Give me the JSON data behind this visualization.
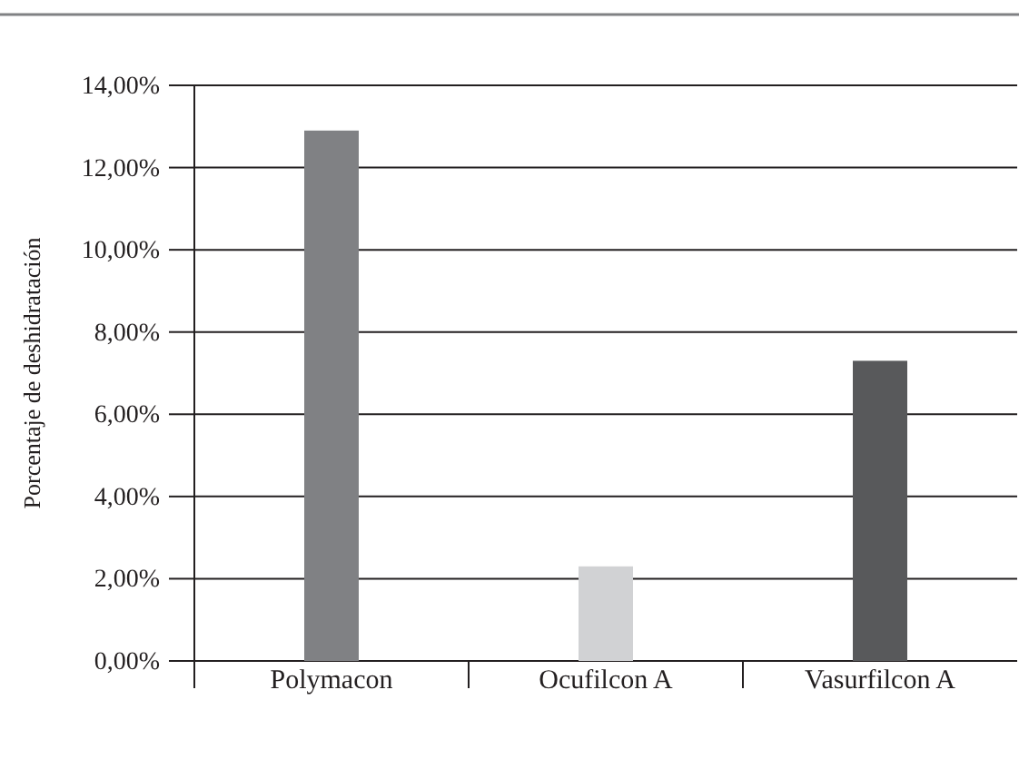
{
  "chart_data": {
    "type": "bar",
    "ylabel": "Porcentaje de deshidratación",
    "categories": [
      "Polymacon",
      "Ocufilcon A",
      "Vasurfilcon A"
    ],
    "values": [
      12.9,
      2.3,
      7.3
    ],
    "colors": [
      "#808184",
      "#d1d2d4",
      "#58595b"
    ],
    "ylim": [
      0,
      14
    ],
    "yticks": [
      {
        "value": 0,
        "label": "0,00%"
      },
      {
        "value": 2,
        "label": "2,00%"
      },
      {
        "value": 4,
        "label": "4,00%"
      },
      {
        "value": 6,
        "label": "6,00%"
      },
      {
        "value": 8,
        "label": "8,00%"
      },
      {
        "value": 10,
        "label": "10,00%"
      },
      {
        "value": 12,
        "label": "12,00%"
      },
      {
        "value": 14,
        "label": "14,00%"
      }
    ],
    "grid": "y"
  }
}
